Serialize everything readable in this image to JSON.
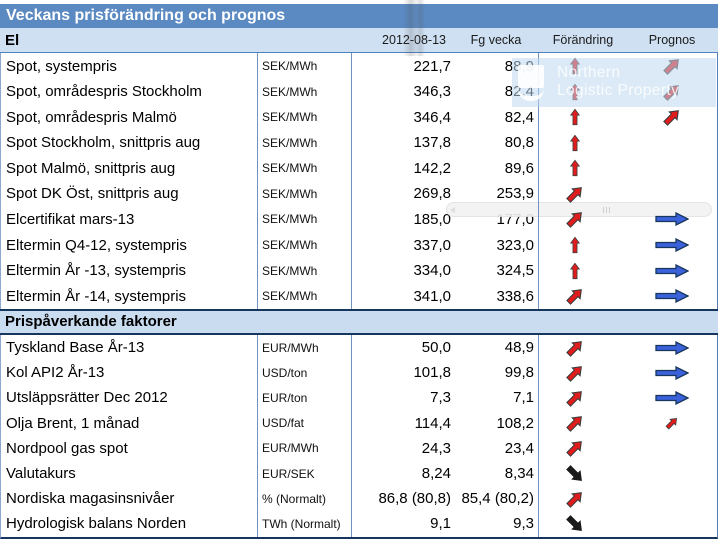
{
  "title": "Veckans prisförändring och prognos",
  "table": {
    "columns": {
      "date": "2012-08-13",
      "prev_week": "Fg vecka",
      "change": "Förändring",
      "forecast": "Prognos"
    },
    "sections": [
      {
        "title": "El",
        "rows": [
          {
            "label": "Spot, systempris",
            "unit": "SEK/MWh",
            "value": "221,7",
            "prev": "88,9",
            "change": "up-red",
            "forecast": "diag-up-red"
          },
          {
            "label": "Spot, områdespris Stockholm",
            "unit": "SEK/MWh",
            "value": "346,3",
            "prev": "82,4",
            "change": "up-red",
            "forecast": "diag-up-red"
          },
          {
            "label": "Spot, områdespris Malmö",
            "unit": "SEK/MWh",
            "value": "346,4",
            "prev": "82,4",
            "change": "up-red",
            "forecast": "diag-up-red"
          },
          {
            "label": "Spot Stockholm, snittpris aug",
            "unit": "SEK/MWh",
            "value": "137,8",
            "prev": "80,8",
            "change": "up-red",
            "forecast": null
          },
          {
            "label": "Spot Malmö, snittpris aug",
            "unit": "SEK/MWh",
            "value": "142,2",
            "prev": "89,6",
            "change": "up-red",
            "forecast": null
          },
          {
            "label": "Spot DK Öst, snittpris aug",
            "unit": "SEK/MWh",
            "value": "269,8",
            "prev": "253,9",
            "change": "diag-up-red",
            "forecast": null
          },
          {
            "label": "Elcertifikat mars-13",
            "unit": "SEK/MWh",
            "value": "185,0",
            "prev": "177,0",
            "change": "diag-up-red",
            "forecast": "right-blue"
          },
          {
            "label": "Eltermin Q4-12, systempris",
            "unit": "SEK/MWh",
            "value": "337,0",
            "prev": "323,0",
            "change": "up-red",
            "forecast": "right-blue"
          },
          {
            "label": "Eltermin År -13, systempris",
            "unit": "SEK/MWh",
            "value": "334,0",
            "prev": "324,5",
            "change": "up-red",
            "forecast": "right-blue"
          },
          {
            "label": "Eltermin År -14, systempris",
            "unit": "SEK/MWh",
            "value": "341,0",
            "prev": "338,6",
            "change": "diag-up-red",
            "forecast": "right-blue"
          }
        ]
      },
      {
        "title": "Prispåverkande faktorer",
        "rows": [
          {
            "label": "Tyskland Base År-13",
            "unit": "EUR/MWh",
            "value": "50,0",
            "prev": "48,9",
            "change": "diag-up-red",
            "forecast": "right-blue"
          },
          {
            "label": "Kol API2 År-13",
            "unit": "USD/ton",
            "value": "101,8",
            "prev": "99,8",
            "change": "diag-up-red",
            "forecast": "right-blue"
          },
          {
            "label": "Utsläppsrätter Dec 2012",
            "unit": "EUR/ton",
            "value": "7,3",
            "prev": "7,1",
            "change": "diag-up-red",
            "forecast": "right-blue"
          },
          {
            "label": "Olja Brent, 1 månad",
            "unit": "USD/fat",
            "value": "114,4",
            "prev": "108,2",
            "change": "diag-up-red",
            "forecast": "diag-up-red-small"
          },
          {
            "label": "Nordpool gas spot",
            "unit": "EUR/MWh",
            "value": "24,3",
            "prev": "23,4",
            "change": "diag-up-red",
            "forecast": null
          },
          {
            "label": "Valutakurs",
            "unit": "EUR/SEK",
            "value": "8,24",
            "prev": "8,34",
            "change": "diag-down-black",
            "forecast": null
          },
          {
            "label": "Nordiska magasinsnivåer",
            "unit": "% (Normalt)",
            "value": "86,8 (80,8)",
            "prev": "85,4 (80,2)",
            "change": "diag-up-red",
            "forecast": null
          },
          {
            "label": "Hydrologisk balans Norden",
            "unit": "TWh (Normalt)",
            "value": "9,1",
            "prev": "9,3",
            "change": "diag-down-black",
            "forecast": null
          }
        ]
      }
    ]
  },
  "watermark": {
    "line1": "Northern",
    "line2": "Logistic Property"
  },
  "colors": {
    "title_bar": "#5b89c2",
    "header_band": "#cfe0f2",
    "section_band": "#c9dcf0",
    "separator": "#6f93c1",
    "dark_border": "#17365d",
    "arrow_red": "#e11c1c",
    "arrow_blue": "#3b62db",
    "arrow_black": "#1a1a1a"
  }
}
